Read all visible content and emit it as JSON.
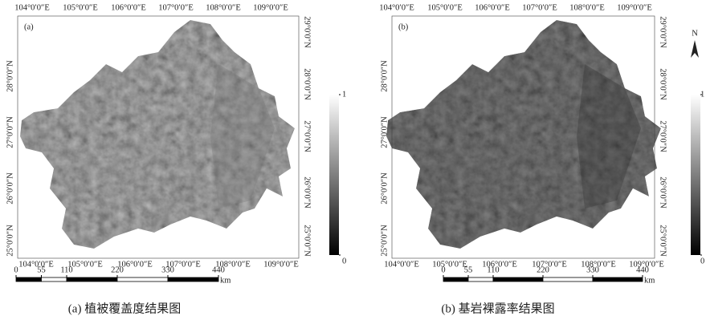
{
  "north_label": "N",
  "panels": [
    {
      "label": "(a)",
      "top_lon": [
        "104°0′0″E",
        "105°0′0″E",
        "106°0′0″E",
        "107°0′0″E",
        "108°0′0″E",
        "109°0′0″E"
      ],
      "bottom_lon": [
        "104°0′0″E",
        "105°0′0″E",
        "106°0′0″E",
        "107°0′0″E",
        "108°0′0″E",
        "109°0′0″E"
      ],
      "left_lat": [
        "28°0′0″N",
        "27°0′0″N",
        "26°0′0″N",
        "25°0′0″N"
      ],
      "right_lat": [
        "29°0′0″N",
        "28°0′0″N",
        "27°0′0″N",
        "26°0′0″N",
        "25°0′0″N"
      ],
      "scale_ticks": [
        0,
        55,
        110,
        220,
        330,
        440
      ],
      "scale_unit": "km",
      "colorbar_ticks": [
        0,
        1
      ],
      "caption": "(a) 植被覆盖度结果图"
    },
    {
      "label": "(b)",
      "top_lon": [
        "104°0′0″E",
        "105°0′0″E",
        "106°0′0″E",
        "107°0′0″E",
        "108°0′0″E",
        "109°0′0″E"
      ],
      "bottom_lon": [
        "104°0′0″E",
        "105°0′0″E",
        "106°0′0″E",
        "107°0′0″E",
        "108°0′0″E",
        "109°0′0″E"
      ],
      "left_lat": [
        "28°0′0″N",
        "27°0′0″N",
        "26°0′0″N",
        "25°0′0″N"
      ],
      "right_lat": [
        "29°0′0″N",
        "28°0′0″N",
        "27°0′0″N",
        "26°0′0″N",
        "25°0′0″N"
      ],
      "scale_ticks": [
        0,
        55,
        110,
        220,
        330,
        440
      ],
      "scale_unit": "km",
      "colorbar_ticks": [
        0,
        1
      ],
      "caption": "(b) 基岩裸露率结果图"
    }
  ]
}
